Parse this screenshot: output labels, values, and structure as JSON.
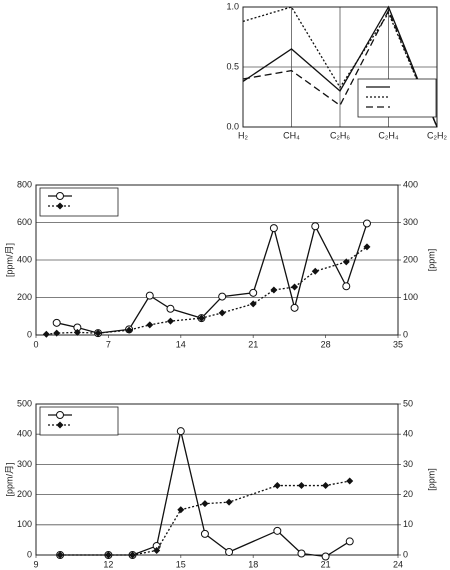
{
  "chart_data": [
    {
      "type": "line",
      "categories": [
        "H₂",
        "CH₄",
        "C₂H₆",
        "C₂H₄",
        "C₂H₂"
      ],
      "ylim": [
        0,
        1
      ],
      "yticks": [
        {
          "value": 0,
          "label": "0.0"
        },
        {
          "value": 0.5,
          "label": "0.5"
        },
        {
          "value": 1,
          "label": "1.0"
        }
      ],
      "grid": "both",
      "legend": "lower right",
      "series": [
        {
          "color": "#111",
          "dash": "solid",
          "values": [
            0.38,
            0.65,
            0.3,
            1.0,
            0.0
          ]
        },
        {
          "color": "#111",
          "dash": "dotted",
          "values": [
            0.88,
            1.0,
            0.33,
            0.95,
            0.0
          ]
        },
        {
          "color": "#111",
          "dash": "dashed",
          "values": [
            0.4,
            0.47,
            0.18,
            0.97,
            0.0
          ]
        }
      ]
    },
    {
      "type": "line",
      "ylabel": "[ppm/月]",
      "y2label": "[ppm]",
      "xlim": [
        0,
        35
      ],
      "xticks": [
        0,
        7,
        14,
        21,
        28,
        35
      ],
      "ylim": [
        0,
        800
      ],
      "yticks": [
        0,
        200,
        400,
        600,
        800
      ],
      "y2lim": [
        0,
        400
      ],
      "y2ticks": [
        0,
        100,
        200,
        300,
        400
      ],
      "grid": "y",
      "legend": "upper left",
      "series": [
        {
          "color": "#111",
          "dash": "solid",
          "marker": "circle",
          "x": [
            2,
            4,
            6,
            9,
            11,
            13,
            16,
            18,
            21,
            23,
            25,
            27,
            30,
            32
          ],
          "values": [
            65,
            40,
            10,
            30,
            210,
            140,
            90,
            205,
            225,
            570,
            145,
            580,
            260,
            595
          ]
        },
        {
          "color": "#111",
          "dash": "dotted",
          "marker": "diamond",
          "axis": "y2",
          "x": [
            1,
            2,
            4,
            6,
            9,
            11,
            13,
            16,
            18,
            21,
            23,
            25,
            27,
            30,
            32
          ],
          "values": [
            2,
            5,
            7,
            5,
            13,
            27,
            37,
            45,
            59,
            83,
            120,
            128,
            170,
            195,
            235
          ]
        }
      ]
    },
    {
      "type": "line",
      "ylabel": "[ppm/月]",
      "y2label": "[ppm]",
      "xlim": [
        9,
        24
      ],
      "xticks": [
        9,
        12,
        15,
        18,
        21,
        24
      ],
      "ylim": [
        0,
        500
      ],
      "yticks": [
        0,
        100,
        200,
        300,
        400,
        500
      ],
      "y2lim": [
        0,
        50
      ],
      "y2ticks": [
        0,
        10,
        20,
        30,
        40,
        50
      ],
      "grid": "y",
      "legend": "upper left",
      "series": [
        {
          "color": "#111",
          "dash": "solid",
          "marker": "circle",
          "x": [
            10,
            12,
            13,
            14,
            15,
            16,
            17,
            19,
            20,
            21,
            22
          ],
          "values": [
            0,
            0,
            0,
            30,
            410,
            70,
            10,
            80,
            5,
            -5,
            45
          ]
        },
        {
          "color": "#111",
          "dash": "dotted",
          "marker": "diamond",
          "axis": "y2",
          "x": [
            10,
            12,
            13,
            14,
            15,
            16,
            17,
            19,
            20,
            21,
            22
          ],
          "values": [
            0,
            0,
            0,
            1.5,
            15,
            17,
            17.5,
            23,
            23,
            23,
            24.5
          ]
        }
      ]
    }
  ]
}
